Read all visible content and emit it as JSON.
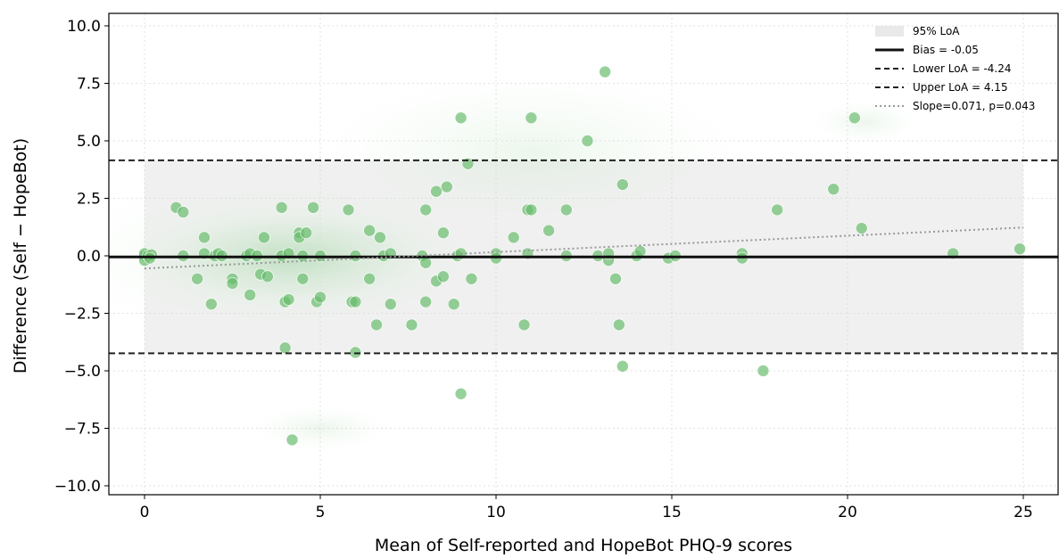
{
  "chart_data": {
    "type": "scatter",
    "title": "",
    "xlabel": "Mean of Self-reported and HopeBot PHQ-9 scores",
    "ylabel": "Difference (Self − HopeBot)",
    "xlim": [
      -1,
      26
    ],
    "ylim": [
      -10.5,
      10.5
    ],
    "xticks": [
      0,
      5,
      10,
      15,
      20,
      25
    ],
    "yticks": [
      10.0,
      7.5,
      5.0,
      2.5,
      0.0,
      -2.5,
      -5.0,
      -7.5,
      -10.0
    ],
    "xtick_labels": [
      "0",
      "5",
      "10",
      "15",
      "20",
      "25"
    ],
    "ytick_labels": [
      "10.0",
      "7.5",
      "5.0",
      "2.5",
      "0.0",
      "−2.5",
      "−5.0",
      "−7.5",
      "−10.0"
    ],
    "grid": true,
    "legend_position": "top-right",
    "colors": {
      "points": "#66bb6a",
      "bias": "#111111",
      "loa": "#222222",
      "band": "#e4e4e4",
      "trend": "#999999",
      "density": "#a5d6a7"
    },
    "bias": -0.05,
    "lower_loa": -4.24,
    "upper_loa": 4.15,
    "band_x_range": [
      0,
      25
    ],
    "trend": {
      "slope": 0.071,
      "x": [
        0,
        25
      ],
      "y": [
        -0.55,
        1.23
      ]
    },
    "legend": [
      {
        "label": "95% LoA",
        "style": "band"
      },
      {
        "label": "Bias = -0.05",
        "style": "solid"
      },
      {
        "label": "Lower LoA = -4.24",
        "style": "dashed"
      },
      {
        "label": "Upper LoA = 4.15",
        "style": "dashed"
      },
      {
        "label": "Slope=0.071, p=0.043",
        "style": "dotted"
      }
    ],
    "points": [
      [
        0,
        0
      ],
      [
        0,
        0.1
      ],
      [
        0,
        -0.2
      ],
      [
        0.1,
        0
      ],
      [
        0.2,
        0.05
      ],
      [
        0.15,
        -0.1
      ],
      [
        0.9,
        2.1
      ],
      [
        1.1,
        1.9
      ],
      [
        1.1,
        0
      ],
      [
        1.5,
        -1.0
      ],
      [
        1.7,
        0.8
      ],
      [
        1.7,
        0.1
      ],
      [
        1.9,
        -2.1
      ],
      [
        2.0,
        0
      ],
      [
        2.1,
        0.1
      ],
      [
        2.2,
        0
      ],
      [
        2.5,
        -1.0
      ],
      [
        2.5,
        -1.2
      ],
      [
        2.9,
        0
      ],
      [
        3.0,
        0.1
      ],
      [
        3.0,
        -1.7
      ],
      [
        3.2,
        0
      ],
      [
        3.3,
        -0.8
      ],
      [
        3.4,
        0.8
      ],
      [
        3.5,
        -0.9
      ],
      [
        3.9,
        2.1
      ],
      [
        3.9,
        0
      ],
      [
        4.0,
        -2.0
      ],
      [
        4.0,
        -4.0
      ],
      [
        4.1,
        0.1
      ],
      [
        4.1,
        -1.9
      ],
      [
        4.2,
        -8.0
      ],
      [
        4.4,
        1.0
      ],
      [
        4.4,
        0.8
      ],
      [
        4.5,
        -1.0
      ],
      [
        4.5,
        0
      ],
      [
        4.6,
        1.0
      ],
      [
        4.8,
        2.1
      ],
      [
        4.9,
        -2.0
      ],
      [
        5.0,
        -1.8
      ],
      [
        5.0,
        0
      ],
      [
        5.8,
        2.0
      ],
      [
        5.9,
        -2.0
      ],
      [
        6.0,
        -4.2
      ],
      [
        6.0,
        0
      ],
      [
        6.0,
        -2.0
      ],
      [
        6.4,
        1.1
      ],
      [
        6.4,
        -1.0
      ],
      [
        6.6,
        -3.0
      ],
      [
        6.7,
        0.8
      ],
      [
        6.8,
        0
      ],
      [
        7.0,
        -2.1
      ],
      [
        7.0,
        0.1
      ],
      [
        7.6,
        -3.0
      ],
      [
        7.9,
        0
      ],
      [
        8.0,
        2.0
      ],
      [
        8.0,
        -2.0
      ],
      [
        8.0,
        -0.3
      ],
      [
        8.3,
        2.8
      ],
      [
        8.3,
        -1.1
      ],
      [
        8.5,
        1.0
      ],
      [
        8.5,
        -0.9
      ],
      [
        8.6,
        3.0
      ],
      [
        8.8,
        -2.1
      ],
      [
        8.9,
        0
      ],
      [
        9.0,
        6.0
      ],
      [
        9.0,
        -6.0
      ],
      [
        9.0,
        0.1
      ],
      [
        9.2,
        4.0
      ],
      [
        9.3,
        -1.0
      ],
      [
        10.0,
        0.1
      ],
      [
        10.0,
        -0.1
      ],
      [
        10.5,
        0.8
      ],
      [
        10.8,
        -3.0
      ],
      [
        10.9,
        0.1
      ],
      [
        10.9,
        2.0
      ],
      [
        11.0,
        6.0
      ],
      [
        11.0,
        2.0
      ],
      [
        11.5,
        1.1
      ],
      [
        12.0,
        2.0
      ],
      [
        12.0,
        0
      ],
      [
        12.6,
        5.0
      ],
      [
        12.9,
        0
      ],
      [
        13.1,
        8.0
      ],
      [
        13.2,
        -0.2
      ],
      [
        13.2,
        0.1
      ],
      [
        13.4,
        -1.0
      ],
      [
        13.5,
        -3.0
      ],
      [
        13.6,
        -4.8
      ],
      [
        13.6,
        3.1
      ],
      [
        14.0,
        0
      ],
      [
        14.1,
        0.2
      ],
      [
        14.9,
        -0.1
      ],
      [
        15.1,
        0
      ],
      [
        17.0,
        0.1
      ],
      [
        17.0,
        -0.1
      ],
      [
        17.6,
        -5.0
      ],
      [
        18.0,
        2.0
      ],
      [
        19.6,
        2.9
      ],
      [
        20.2,
        6.0
      ],
      [
        20.4,
        1.2
      ],
      [
        23.0,
        0.1
      ],
      [
        24.9,
        0.3
      ]
    ]
  }
}
